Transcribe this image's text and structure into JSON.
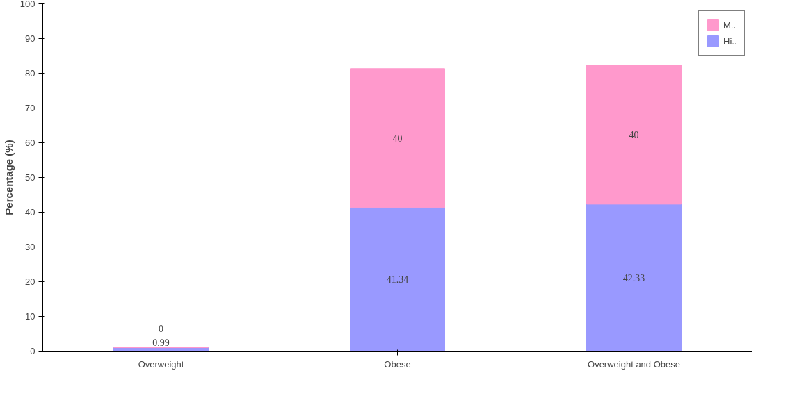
{
  "chart_data": {
    "type": "bar",
    "stacked": true,
    "ylabel": "Percentage (%)",
    "categories": [
      "Overweight",
      "Obese",
      "Overweight and Obese"
    ],
    "series": [
      {
        "name": "Hi..",
        "color": "#9999ff",
        "values": [
          0.99,
          41.34,
          42.33
        ]
      },
      {
        "name": "M..",
        "color": "#ff99cc",
        "values": [
          0,
          40,
          40
        ]
      }
    ],
    "ylim": [
      0,
      100
    ],
    "yticks": [
      0,
      10,
      20,
      30,
      40,
      50,
      60,
      70,
      80,
      90,
      100
    ],
    "grid": false,
    "legend": "right",
    "data_labels": true
  }
}
